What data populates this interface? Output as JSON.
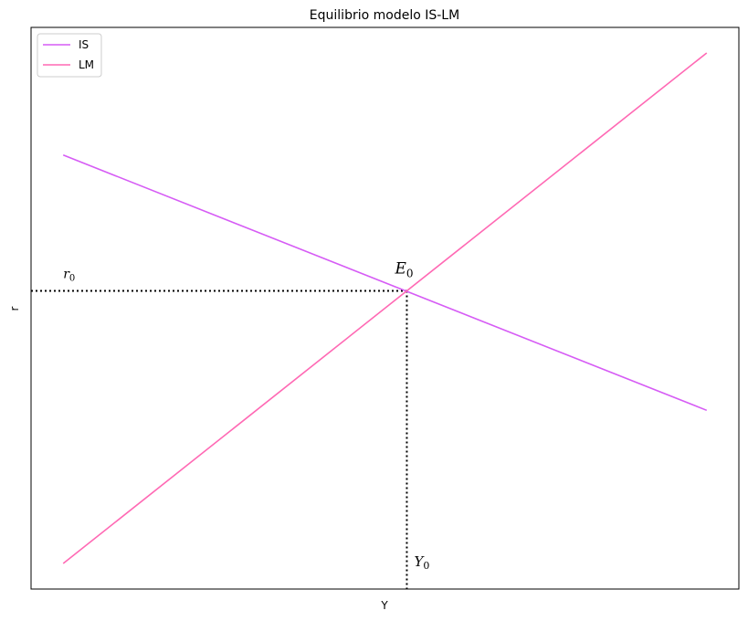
{
  "chart_data": {
    "type": "line",
    "title": "Equilibrio modelo IS-LM",
    "xlabel": "Y",
    "ylabel": "r",
    "xticks": [],
    "yticks": [],
    "grid": false,
    "legend": {
      "placement": "upper left",
      "entries": [
        "IS",
        "LM"
      ]
    },
    "xlim": [
      -2.5,
      52.5
    ],
    "ylim": [
      -2.5,
      52.5
    ],
    "series": [
      {
        "name": "IS",
        "color": "#d65cf5",
        "x": [
          0,
          50
        ],
        "y": [
          40,
          15
        ]
      },
      {
        "name": "LM",
        "color": "#ff69b4",
        "x": [
          0,
          50
        ],
        "y": [
          0,
          50
        ]
      }
    ],
    "equilibrium": {
      "label": "E",
      "subscript": "0",
      "x": 26.7,
      "y": 26.7
    },
    "annotations": {
      "r0": {
        "label": "r",
        "subscript": "0"
      },
      "Y0": {
        "label": "Y",
        "subscript": "0"
      }
    }
  }
}
